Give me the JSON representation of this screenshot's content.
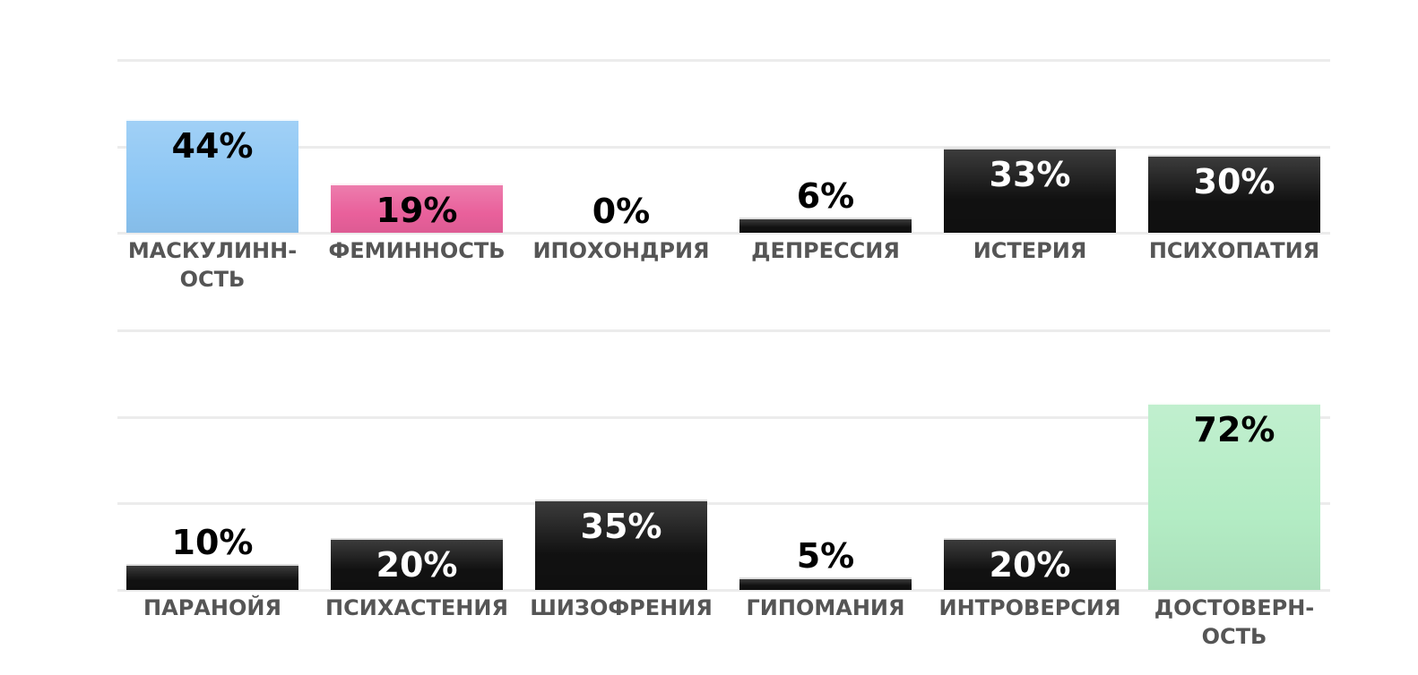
{
  "chart_data": [
    {
      "type": "bar",
      "categories": [
        "МАСКУЛИНН-\nОСТЬ",
        "ФЕМИННОСТЬ",
        "ИПОХОНДРИЯ",
        "ДЕПРЕССИЯ",
        "ИСТЕРИЯ",
        "ПСИХОПАТИЯ"
      ],
      "values": [
        44,
        19,
        0,
        6,
        33,
        30
      ],
      "value_labels": [
        "44%",
        "19%",
        "0%",
        "6%",
        "33%",
        "30%"
      ],
      "colors": [
        "#8cc6f4",
        "#e9609b",
        "#111111",
        "#111111",
        "#111111",
        "#111111"
      ],
      "ylim": [
        0,
        66.7
      ],
      "ygrid": [
        0,
        33.3,
        66.7
      ]
    },
    {
      "type": "bar",
      "categories": [
        "ПАРАНОЙЯ",
        "ПСИХАСТЕНИЯ",
        "ШИЗОФРЕНИЯ",
        "ГИПОМАНИЯ",
        "ИНТРОВЕРСИЯ",
        "ДОСТОВЕРН-\nОСТЬ"
      ],
      "values": [
        10,
        20,
        35,
        5,
        20,
        72
      ],
      "value_labels": [
        "10%",
        "20%",
        "35%",
        "5%",
        "20%",
        "72%"
      ],
      "colors": [
        "#111111",
        "#111111",
        "#111111",
        "#111111",
        "#111111",
        "#b3ecc4"
      ],
      "ylim": [
        0,
        100
      ],
      "ygrid": [
        0,
        33.3,
        66.7,
        100
      ]
    }
  ]
}
